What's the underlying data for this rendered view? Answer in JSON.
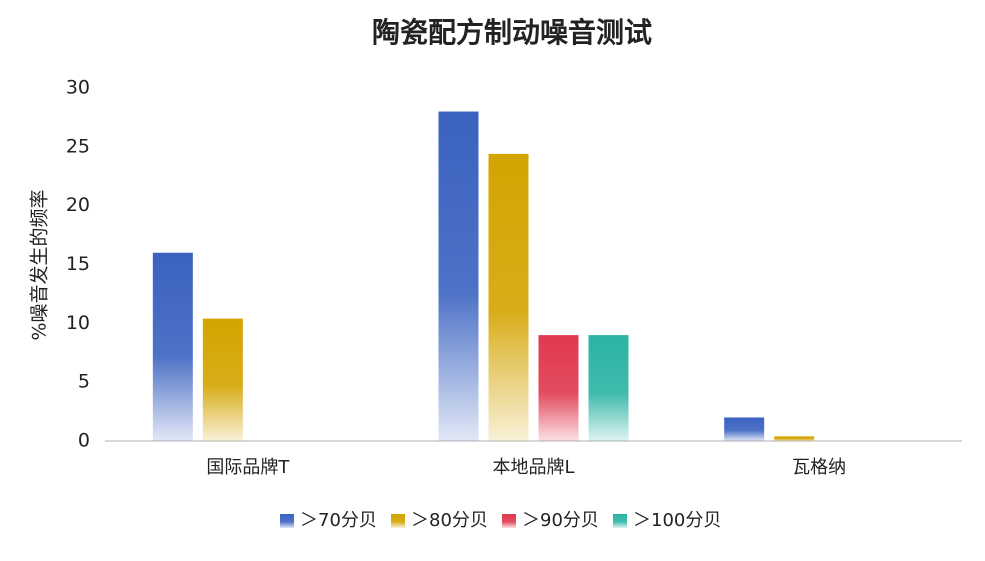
{
  "chart_data": {
    "type": "bar",
    "title": "陶瓷配方制动噪音测试",
    "y_label": "%噪音发生的频率",
    "categories": [
      "国际品牌T",
      "本地品牌L",
      "瓦格纳"
    ],
    "series": [
      {
        "name": "＞70分贝",
        "color": "#3a62c0",
        "values": [
          16,
          28,
          2
        ]
      },
      {
        "name": "＞80分贝",
        "color": "#d4a400",
        "values": [
          10.4,
          24.4,
          0.4
        ]
      },
      {
        "name": "＞90分贝",
        "color": "#e0394f",
        "values": [
          0,
          9,
          0
        ]
      },
      {
        "name": "＞100分贝",
        "color": "#2bb3a3",
        "values": [
          0,
          9,
          0
        ]
      }
    ],
    "ylim": [
      0,
      30
    ],
    "yticks": [
      0,
      5,
      10,
      15,
      20,
      25,
      30
    ],
    "grid": false,
    "legend": "bottom"
  }
}
